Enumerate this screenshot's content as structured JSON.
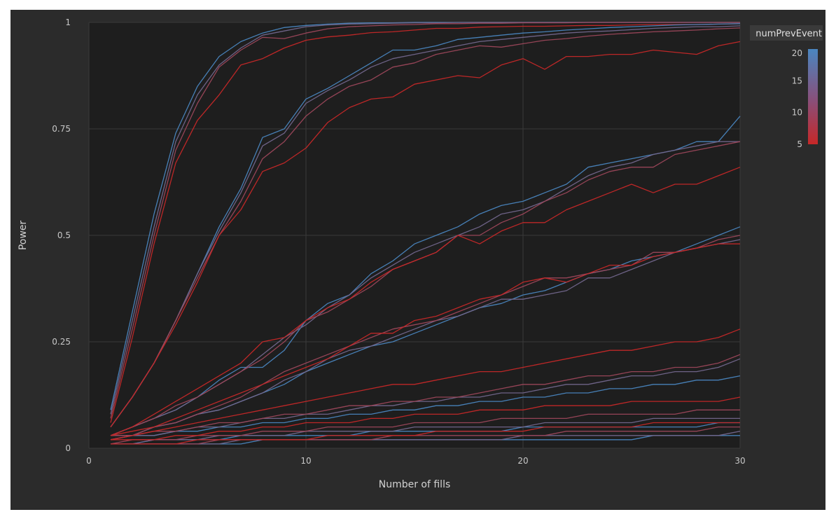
{
  "chart_data": {
    "type": "line",
    "title": "",
    "xlabel": "Number of fills",
    "ylabel": "Power",
    "xlim": [
      0,
      30
    ],
    "ylim": [
      0,
      1
    ],
    "x_ticks": [
      0,
      10,
      20,
      30
    ],
    "x_tick_labels": [
      "0",
      "10",
      "20",
      "30"
    ],
    "y_ticks": [
      0,
      0.25,
      0.5,
      0.75,
      1
    ],
    "y_tick_labels": [
      "0",
      "0.25",
      "0.5",
      "0.75",
      "1"
    ],
    "grid": true,
    "legend": {
      "type": "colorbar",
      "title": "numPrevEvent",
      "placement": "right",
      "range": [
        5,
        20
      ],
      "tick_labels": [
        "20",
        "15",
        "10",
        "5"
      ],
      "ticks": [
        20,
        15,
        10,
        5
      ],
      "color_low": "#c62828",
      "color_high": "#4a86c0"
    },
    "colors": {
      "background": "#2b2b2b",
      "plot_background": "#1e1e1e",
      "grid": "#3a3a3a"
    },
    "x": [
      1,
      2,
      3,
      4,
      5,
      6,
      7,
      8,
      9,
      10,
      11,
      12,
      13,
      14,
      15,
      16,
      17,
      18,
      19,
      20,
      21,
      22,
      23,
      24,
      25,
      26,
      27,
      28,
      29,
      30
    ],
    "series": [
      {
        "numPrevEvent": 20,
        "values": [
          0.09,
          0.32,
          0.55,
          0.74,
          0.85,
          0.92,
          0.955,
          0.975,
          0.988,
          0.993,
          0.996,
          0.998,
          0.999,
          0.999,
          1,
          1,
          1,
          1,
          1,
          1,
          1,
          1,
          1,
          1,
          1,
          1,
          1,
          1,
          1,
          1
        ]
      },
      {
        "numPrevEvent": 15,
        "values": [
          0.08,
          0.3,
          0.52,
          0.72,
          0.83,
          0.9,
          0.94,
          0.97,
          0.98,
          0.99,
          0.994,
          0.996,
          0.997,
          0.998,
          0.999,
          0.999,
          1,
          1,
          1,
          1,
          1,
          1,
          1,
          1,
          1,
          1,
          1,
          1,
          1,
          1
        ]
      },
      {
        "numPrevEvent": 10,
        "values": [
          0.07,
          0.28,
          0.5,
          0.7,
          0.81,
          0.895,
          0.935,
          0.965,
          0.962,
          0.975,
          0.985,
          0.99,
          0.992,
          0.994,
          0.995,
          0.997,
          0.997,
          0.998,
          0.998,
          0.999,
          0.999,
          0.999,
          1,
          1,
          1,
          1,
          1,
          1,
          1,
          1
        ]
      },
      {
        "numPrevEvent": 5,
        "values": [
          0.06,
          0.26,
          0.48,
          0.67,
          0.77,
          0.83,
          0.9,
          0.915,
          0.94,
          0.958,
          0.966,
          0.97,
          0.976,
          0.978,
          0.982,
          0.986,
          0.986,
          0.989,
          0.99,
          0.991,
          0.991,
          0.992,
          0.993,
          0.993,
          0.994,
          0.995,
          0.995,
          0.995,
          0.996,
          0.997
        ]
      },
      {
        "numPrevEvent": 20,
        "values": [
          0.05,
          0.12,
          0.2,
          0.3,
          0.41,
          0.52,
          0.61,
          0.73,
          0.75,
          0.82,
          0.845,
          0.875,
          0.905,
          0.935,
          0.935,
          0.945,
          0.96,
          0.965,
          0.97,
          0.975,
          0.978,
          0.982,
          0.985,
          0.988,
          0.99,
          0.992,
          0.994,
          0.995,
          0.996,
          0.997
        ]
      },
      {
        "numPrevEvent": 15,
        "values": [
          0.05,
          0.12,
          0.2,
          0.3,
          0.41,
          0.51,
          0.6,
          0.71,
          0.74,
          0.81,
          0.84,
          0.865,
          0.895,
          0.915,
          0.925,
          0.935,
          0.945,
          0.955,
          0.96,
          0.965,
          0.97,
          0.975,
          0.978,
          0.98,
          0.983,
          0.986,
          0.988,
          0.99,
          0.99,
          0.992
        ]
      },
      {
        "numPrevEvent": 10,
        "values": [
          0.05,
          0.12,
          0.2,
          0.3,
          0.4,
          0.5,
          0.58,
          0.68,
          0.72,
          0.78,
          0.82,
          0.85,
          0.865,
          0.895,
          0.905,
          0.925,
          0.935,
          0.945,
          0.942,
          0.95,
          0.958,
          0.962,
          0.968,
          0.972,
          0.975,
          0.978,
          0.98,
          0.982,
          0.985,
          0.987
        ]
      },
      {
        "numPrevEvent": 5,
        "values": [
          0.05,
          0.12,
          0.2,
          0.29,
          0.39,
          0.5,
          0.56,
          0.65,
          0.67,
          0.705,
          0.765,
          0.8,
          0.82,
          0.825,
          0.855,
          0.865,
          0.875,
          0.87,
          0.9,
          0.915,
          0.89,
          0.92,
          0.92,
          0.925,
          0.925,
          0.935,
          0.93,
          0.925,
          0.945,
          0.955
        ]
      },
      {
        "numPrevEvent": 20,
        "values": [
          0.03,
          0.05,
          0.07,
          0.09,
          0.12,
          0.16,
          0.19,
          0.19,
          0.23,
          0.3,
          0.34,
          0.36,
          0.41,
          0.44,
          0.48,
          0.5,
          0.52,
          0.55,
          0.57,
          0.58,
          0.6,
          0.62,
          0.66,
          0.67,
          0.68,
          0.69,
          0.7,
          0.72,
          0.72,
          0.78
        ]
      },
      {
        "numPrevEvent": 15,
        "values": [
          0.03,
          0.05,
          0.07,
          0.09,
          0.12,
          0.15,
          0.18,
          0.22,
          0.26,
          0.29,
          0.33,
          0.36,
          0.4,
          0.43,
          0.46,
          0.48,
          0.5,
          0.52,
          0.55,
          0.56,
          0.58,
          0.61,
          0.64,
          0.66,
          0.67,
          0.69,
          0.7,
          0.71,
          0.72,
          0.72
        ]
      },
      {
        "numPrevEvent": 10,
        "values": [
          0.03,
          0.05,
          0.07,
          0.1,
          0.12,
          0.15,
          0.18,
          0.21,
          0.25,
          0.3,
          0.32,
          0.35,
          0.38,
          0.42,
          0.44,
          0.46,
          0.5,
          0.5,
          0.53,
          0.55,
          0.58,
          0.6,
          0.63,
          0.65,
          0.66,
          0.66,
          0.69,
          0.7,
          0.71,
          0.72
        ]
      },
      {
        "numPrevEvent": 5,
        "values": [
          0.03,
          0.05,
          0.08,
          0.11,
          0.14,
          0.17,
          0.2,
          0.25,
          0.26,
          0.3,
          0.33,
          0.35,
          0.39,
          0.42,
          0.44,
          0.46,
          0.5,
          0.48,
          0.51,
          0.53,
          0.53,
          0.56,
          0.58,
          0.6,
          0.62,
          0.6,
          0.62,
          0.62,
          0.64,
          0.66
        ]
      },
      {
        "numPrevEvent": 20,
        "values": [
          0.03,
          0.03,
          0.05,
          0.06,
          0.08,
          0.09,
          0.11,
          0.13,
          0.15,
          0.18,
          0.2,
          0.22,
          0.24,
          0.25,
          0.27,
          0.29,
          0.31,
          0.33,
          0.34,
          0.36,
          0.37,
          0.39,
          0.41,
          0.42,
          0.44,
          0.45,
          0.46,
          0.48,
          0.5,
          0.52
        ]
      },
      {
        "numPrevEvent": 15,
        "values": [
          0.03,
          0.03,
          0.05,
          0.06,
          0.08,
          0.09,
          0.11,
          0.13,
          0.16,
          0.18,
          0.21,
          0.23,
          0.24,
          0.26,
          0.28,
          0.3,
          0.31,
          0.33,
          0.35,
          0.35,
          0.36,
          0.37,
          0.4,
          0.4,
          0.42,
          0.44,
          0.46,
          0.47,
          0.48,
          0.49
        ]
      },
      {
        "numPrevEvent": 10,
        "values": [
          0.03,
          0.03,
          0.05,
          0.06,
          0.08,
          0.1,
          0.12,
          0.15,
          0.18,
          0.2,
          0.22,
          0.24,
          0.26,
          0.28,
          0.29,
          0.3,
          0.32,
          0.34,
          0.36,
          0.38,
          0.4,
          0.4,
          0.41,
          0.42,
          0.43,
          0.46,
          0.46,
          0.47,
          0.49,
          0.5
        ]
      },
      {
        "numPrevEvent": 5,
        "values": [
          0.03,
          0.04,
          0.05,
          0.07,
          0.09,
          0.11,
          0.13,
          0.15,
          0.17,
          0.19,
          0.21,
          0.24,
          0.27,
          0.27,
          0.3,
          0.31,
          0.33,
          0.35,
          0.36,
          0.39,
          0.4,
          0.39,
          0.41,
          0.43,
          0.43,
          0.45,
          0.46,
          0.47,
          0.48,
          0.48
        ]
      },
      {
        "numPrevEvent": 20,
        "values": [
          0.02,
          0.03,
          0.03,
          0.04,
          0.04,
          0.05,
          0.05,
          0.06,
          0.06,
          0.07,
          0.07,
          0.08,
          0.08,
          0.09,
          0.09,
          0.1,
          0.1,
          0.11,
          0.11,
          0.12,
          0.12,
          0.13,
          0.13,
          0.14,
          0.14,
          0.15,
          0.15,
          0.16,
          0.16,
          0.17
        ]
      },
      {
        "numPrevEvent": 15,
        "values": [
          0.02,
          0.03,
          0.03,
          0.04,
          0.05,
          0.05,
          0.06,
          0.07,
          0.07,
          0.08,
          0.08,
          0.09,
          0.1,
          0.1,
          0.11,
          0.11,
          0.12,
          0.12,
          0.13,
          0.13,
          0.14,
          0.15,
          0.15,
          0.16,
          0.17,
          0.17,
          0.18,
          0.18,
          0.19,
          0.21
        ]
      },
      {
        "numPrevEvent": 10,
        "values": [
          0.02,
          0.03,
          0.04,
          0.04,
          0.05,
          0.06,
          0.06,
          0.07,
          0.08,
          0.08,
          0.09,
          0.1,
          0.1,
          0.11,
          0.11,
          0.12,
          0.12,
          0.13,
          0.14,
          0.15,
          0.15,
          0.16,
          0.17,
          0.17,
          0.18,
          0.18,
          0.19,
          0.19,
          0.2,
          0.22
        ]
      },
      {
        "numPrevEvent": 5,
        "values": [
          0.02,
          0.03,
          0.04,
          0.05,
          0.06,
          0.07,
          0.08,
          0.09,
          0.1,
          0.11,
          0.12,
          0.13,
          0.14,
          0.15,
          0.15,
          0.16,
          0.17,
          0.18,
          0.18,
          0.19,
          0.2,
          0.21,
          0.22,
          0.23,
          0.23,
          0.24,
          0.25,
          0.25,
          0.26,
          0.28
        ]
      },
      {
        "numPrevEvent": 20,
        "values": [
          0.01,
          0.01,
          0.02,
          0.02,
          0.02,
          0.02,
          0.03,
          0.03,
          0.03,
          0.03,
          0.03,
          0.03,
          0.04,
          0.04,
          0.04,
          0.04,
          0.04,
          0.04,
          0.04,
          0.05,
          0.05,
          0.05,
          0.05,
          0.05,
          0.05,
          0.05,
          0.05,
          0.05,
          0.06,
          0.06
        ]
      },
      {
        "numPrevEvent": 15,
        "values": [
          0.01,
          0.01,
          0.02,
          0.02,
          0.02,
          0.03,
          0.03,
          0.03,
          0.03,
          0.04,
          0.04,
          0.04,
          0.04,
          0.04,
          0.05,
          0.05,
          0.05,
          0.05,
          0.05,
          0.05,
          0.06,
          0.06,
          0.06,
          0.06,
          0.06,
          0.07,
          0.07,
          0.07,
          0.07,
          0.07
        ]
      },
      {
        "numPrevEvent": 10,
        "values": [
          0.01,
          0.02,
          0.02,
          0.02,
          0.03,
          0.03,
          0.03,
          0.04,
          0.04,
          0.04,
          0.05,
          0.05,
          0.05,
          0.05,
          0.06,
          0.06,
          0.06,
          0.06,
          0.07,
          0.07,
          0.07,
          0.07,
          0.08,
          0.08,
          0.08,
          0.08,
          0.08,
          0.09,
          0.09,
          0.09
        ]
      },
      {
        "numPrevEvent": 5,
        "values": [
          0.02,
          0.02,
          0.02,
          0.03,
          0.03,
          0.04,
          0.04,
          0.05,
          0.05,
          0.06,
          0.06,
          0.06,
          0.07,
          0.07,
          0.08,
          0.08,
          0.08,
          0.09,
          0.09,
          0.09,
          0.1,
          0.1,
          0.1,
          0.1,
          0.11,
          0.11,
          0.11,
          0.11,
          0.11,
          0.12
        ]
      },
      {
        "numPrevEvent": 20,
        "values": [
          0.01,
          0.01,
          0.01,
          0.01,
          0.01,
          0.01,
          0.01,
          0.02,
          0.02,
          0.02,
          0.02,
          0.02,
          0.02,
          0.02,
          0.02,
          0.02,
          0.02,
          0.02,
          0.02,
          0.02,
          0.02,
          0.02,
          0.02,
          0.02,
          0.02,
          0.03,
          0.03,
          0.03,
          0.03,
          0.03
        ]
      },
      {
        "numPrevEvent": 15,
        "values": [
          0.01,
          0.01,
          0.01,
          0.01,
          0.01,
          0.01,
          0.02,
          0.02,
          0.02,
          0.02,
          0.02,
          0.02,
          0.02,
          0.02,
          0.02,
          0.02,
          0.02,
          0.02,
          0.02,
          0.03,
          0.03,
          0.03,
          0.03,
          0.03,
          0.03,
          0.03,
          0.03,
          0.03,
          0.03,
          0.04
        ]
      },
      {
        "numPrevEvent": 10,
        "values": [
          0.01,
          0.01,
          0.01,
          0.01,
          0.01,
          0.02,
          0.02,
          0.02,
          0.02,
          0.02,
          0.02,
          0.02,
          0.02,
          0.03,
          0.03,
          0.03,
          0.03,
          0.03,
          0.03,
          0.03,
          0.03,
          0.04,
          0.04,
          0.04,
          0.04,
          0.04,
          0.04,
          0.04,
          0.05,
          0.05
        ]
      },
      {
        "numPrevEvent": 5,
        "values": [
          0.01,
          0.01,
          0.01,
          0.01,
          0.02,
          0.02,
          0.02,
          0.02,
          0.02,
          0.02,
          0.03,
          0.03,
          0.03,
          0.03,
          0.03,
          0.04,
          0.04,
          0.04,
          0.04,
          0.04,
          0.05,
          0.05,
          0.05,
          0.05,
          0.05,
          0.06,
          0.06,
          0.06,
          0.06,
          0.06
        ]
      }
    ]
  }
}
